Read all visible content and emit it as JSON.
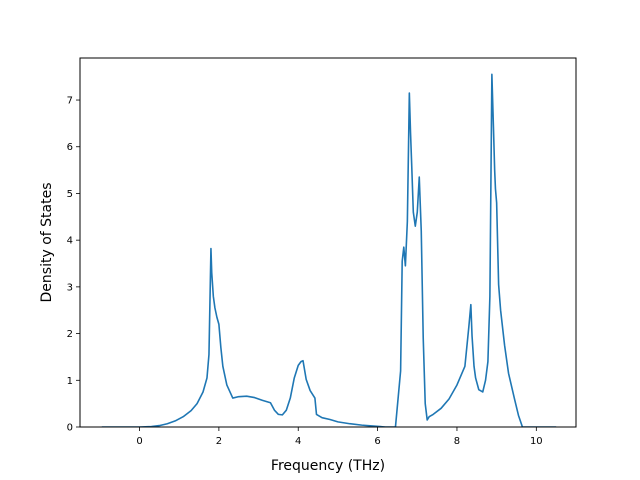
{
  "chart_data": {
    "type": "line",
    "title": "",
    "xlabel": "Frequency (THz)",
    "ylabel": "Density of States",
    "xlim": [
      -1.5,
      11.0
    ],
    "ylim": [
      0,
      7.9
    ],
    "xticks": [
      0,
      2,
      4,
      6,
      8,
      10
    ],
    "yticks": [
      0,
      1,
      2,
      3,
      4,
      5,
      6,
      7
    ],
    "grid": false,
    "legend": "none",
    "line_color": "#1f77b4",
    "series": [
      {
        "x": [
          -0.95,
          -0.5,
          0.0,
          0.3,
          0.5,
          0.7,
          0.9,
          1.1,
          1.3,
          1.45,
          1.6,
          1.7,
          1.75,
          1.8,
          1.82,
          1.86,
          1.9,
          1.95,
          2.0,
          2.05,
          2.1,
          2.2,
          2.35,
          2.5,
          2.7,
          2.9,
          3.1,
          3.3,
          3.4,
          3.5,
          3.6,
          3.7,
          3.8,
          3.9,
          4.0,
          4.07,
          4.12,
          4.2,
          4.3,
          4.42,
          4.46,
          4.6,
          4.8,
          5.0,
          5.3,
          5.6,
          5.9,
          6.2,
          6.45,
          6.58,
          6.62,
          6.66,
          6.7,
          6.75,
          6.8,
          6.83,
          6.86,
          6.9,
          6.95,
          7.0,
          7.05,
          7.1,
          7.15,
          7.2,
          7.25,
          7.3,
          7.4,
          7.6,
          7.8,
          8.0,
          8.2,
          8.3,
          8.35,
          8.38,
          8.43,
          8.47,
          8.55,
          8.65,
          8.72,
          8.78,
          8.83,
          8.88,
          8.92,
          8.95,
          8.97,
          9.0,
          9.05,
          9.1,
          9.2,
          9.3,
          9.45,
          9.55,
          9.65,
          10.0,
          10.5
        ],
        "y": [
          0,
          0,
          0,
          0.01,
          0.03,
          0.07,
          0.13,
          0.22,
          0.35,
          0.5,
          0.75,
          1.05,
          1.55,
          3.82,
          3.3,
          2.8,
          2.55,
          2.35,
          2.2,
          1.7,
          1.3,
          0.9,
          0.62,
          0.65,
          0.66,
          0.63,
          0.57,
          0.52,
          0.36,
          0.27,
          0.26,
          0.36,
          0.62,
          1.05,
          1.32,
          1.4,
          1.42,
          1.02,
          0.78,
          0.62,
          0.27,
          0.2,
          0.16,
          0.11,
          0.07,
          0.04,
          0.02,
          0.0,
          0.0,
          1.2,
          3.55,
          3.85,
          3.45,
          4.4,
          7.15,
          6.3,
          5.6,
          4.6,
          4.3,
          4.6,
          5.35,
          4.2,
          1.9,
          0.5,
          0.15,
          0.22,
          0.27,
          0.4,
          0.6,
          0.9,
          1.3,
          2.15,
          2.62,
          1.95,
          1.3,
          1.05,
          0.8,
          0.75,
          1.0,
          1.4,
          2.8,
          7.55,
          6.4,
          5.5,
          5.1,
          4.8,
          3.05,
          2.5,
          1.75,
          1.15,
          0.6,
          0.25,
          0.0,
          0.0,
          0.0
        ]
      }
    ]
  }
}
